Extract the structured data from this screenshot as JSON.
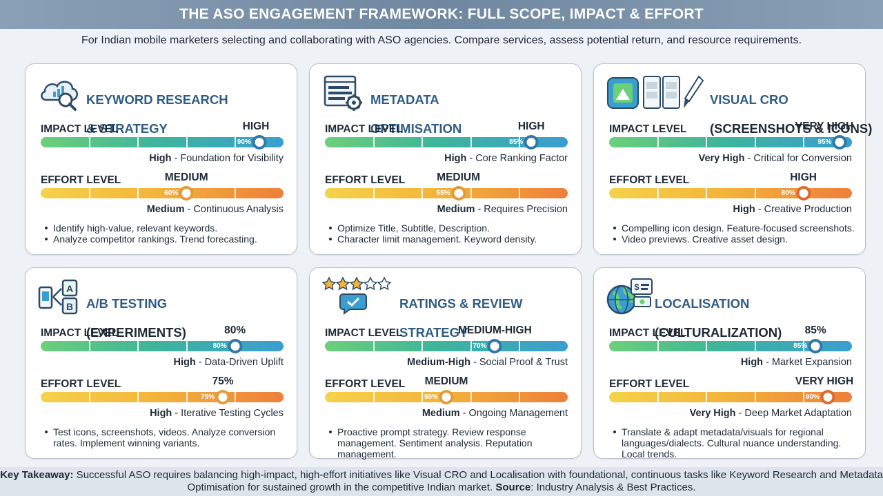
{
  "header": {
    "title": "THE ASO ENGAGEMENT FRAMEWORK: FULL SCOPE, IMPACT & EFFORT"
  },
  "subtitle": "For Indian mobile marketers selecting and collaborating with ASO agencies. Compare services, assess potential return, and resource requirements.",
  "labels": {
    "impact": "IMPACT LEVEL",
    "effort": "EFFORT LEVEL"
  },
  "cards": [
    {
      "title_line1": "KEYWORD RESEARCH",
      "title_line2": "& STRATEGY",
      "icon": "cloud-analytics-search-icon",
      "impact": {
        "level": "HIGH",
        "value": 90,
        "pct_label": "90%",
        "note_bold": "High",
        "note_rest": " - Foundation for Visibility"
      },
      "effort": {
        "level": "MEDIUM",
        "value": 60,
        "pct_label": "60%",
        "note_bold": "Medium",
        "note_rest": " - Continuous Analysis"
      },
      "bullets": [
        "Identify high-value, relevant keywords.",
        "Analyze competitor rankings. Trend forecasting."
      ]
    },
    {
      "title_line1": "METADATA",
      "title_line2": "OPTIMISATION",
      "icon": "document-gear-icon",
      "impact": {
        "level": "HIGH",
        "value": 85,
        "pct_label": "85%",
        "note_bold": "High",
        "note_rest": " - Core Ranking Factor"
      },
      "effort": {
        "level": "MEDIUM",
        "value": 55,
        "pct_label": "55%",
        "note_bold": "Medium",
        "note_rest": " - Requires Precision"
      },
      "bullets": [
        "Optimize Title, Subtitle, Description.",
        "Character limit management. Keyword density."
      ]
    },
    {
      "title_line1": "VISUAL CRO",
      "title_line2": "(SCREENSHOTS & ICONS)",
      "icon": "app-icon-screenshots-brush-icon",
      "impact": {
        "level": "VERY HIGH",
        "value": 95,
        "pct_label": "95%",
        "note_bold": "Very High",
        "note_rest": " - Critical for Conversion"
      },
      "effort": {
        "level": "HIGH",
        "value": 80,
        "pct_label": "80%",
        "note_bold": "High",
        "note_rest": " - Creative Production"
      },
      "bullets": [
        "Compelling icon design. Feature-focused screenshots.",
        "Video previews. Creative asset design."
      ]
    },
    {
      "title_line1": "A/B TESTING",
      "title_line2": "(EXPERIMENTS)",
      "icon": "ab-test-phones-icon",
      "impact": {
        "level": "80%",
        "value": 80,
        "pct_label": "80%",
        "note_bold": "High",
        "note_rest": " - Data-Driven Uplift"
      },
      "effort": {
        "level": "75%",
        "value": 75,
        "pct_label": "75%",
        "note_bold": "High",
        "note_rest": " - Iterative Testing Cycles"
      },
      "bullets": [
        "Test icons, screenshots, videos. Analyze conversion rates. Implement winning variants."
      ]
    },
    {
      "title_line1": "RATINGS & REVIEW",
      "title_line2": "STRATEGY",
      "icon": "stars-review-check-icon",
      "impact": {
        "level": "MEDIUM-HIGH",
        "value": 70,
        "pct_label": "70%",
        "note_bold": "Medium-High",
        "note_rest": " - Social Proof & Trust"
      },
      "effort": {
        "level": "MEDIUM",
        "value": 50,
        "pct_label": "50%",
        "note_bold": "Medium",
        "note_rest": " - Ongoing Management"
      },
      "bullets": [
        "Proactive prompt strategy. Review response management. Sentiment analysis. Reputation management."
      ]
    },
    {
      "title_line1": "LOCALISATION",
      "title_line2": "(CULTURALIZATION)",
      "icon": "globe-currency-icon",
      "impact": {
        "level": "85%",
        "value": 85,
        "pct_label": "85%",
        "note_bold": "High",
        "note_rest": " - Market Expansion"
      },
      "effort": {
        "level": "VERY HIGH",
        "value": 90,
        "pct_label": "90%",
        "note_bold": "Very High",
        "note_rest": " - Deep Market Adaptation"
      },
      "bullets": [
        "Translate & adapt metadata/visuals for regional languages/dialects. Cultural nuance understanding. Local trends."
      ]
    }
  ],
  "footer": {
    "takeaway_label": "Key Takeaway:",
    "takeaway_text": " Successful ASO requires balancing high-impact, high-effort initiatives like Visual CRO and Localisation with foundational, continuous tasks like Keyword Research and Metadata Optimisation for sustained growth in the competitive Indian market.",
    "source_label": "Source",
    "source_text": ": Industry Analysis & Best Practices."
  },
  "colors": {
    "title_blue": "#2f5c86",
    "impact_gradient": [
      "#6ccf7a",
      "#3fb59a",
      "#3a9ed0"
    ],
    "effort_gradient": [
      "#f5d24a",
      "#f3b63a",
      "#ee7f3a"
    ]
  }
}
